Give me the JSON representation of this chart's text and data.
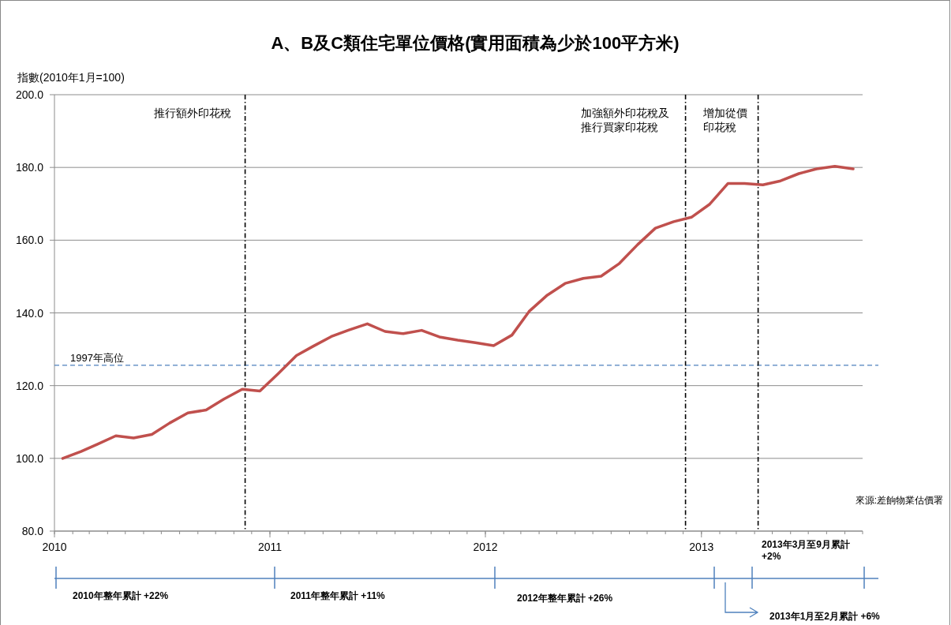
{
  "chart_data": {
    "type": "line",
    "title": "A、B及C類住宅單位價格(實用面積為少於100平方米)",
    "ylabel": "指數(2010年1月=100)",
    "x": [
      "2010-01-15",
      "2010-02-15",
      "2010-03-15",
      "2010-04-15",
      "2010-05-15",
      "2010-06-15",
      "2010-07-15",
      "2010-08-15",
      "2010-09-15",
      "2010-10-15",
      "2010-11-15",
      "2010-12-15",
      "2011-01-15",
      "2011-02-15",
      "2011-03-15",
      "2011-04-15",
      "2011-05-15",
      "2011-06-15",
      "2011-07-15",
      "2011-08-15",
      "2011-09-15",
      "2011-10-15",
      "2011-11-15",
      "2011-12-15",
      "2012-01-15",
      "2012-02-15",
      "2012-03-15",
      "2012-04-15",
      "2012-05-15",
      "2012-06-15",
      "2012-07-15",
      "2012-08-15",
      "2012-09-15",
      "2012-10-15",
      "2012-11-15",
      "2012-12-15",
      "2013-01-15",
      "2013-02-15",
      "2013-03-15",
      "2013-04-15",
      "2013-05-15",
      "2013-06-15",
      "2013-07-15",
      "2013-08-15",
      "2013-09-15"
    ],
    "series": [
      {
        "color": "#c0504d",
        "values": [
          100.0,
          101.9,
          103.9,
          106.2,
          105.6,
          106.6,
          109.7,
          112.5,
          113.3,
          116.3,
          119.0,
          118.5,
          123.3,
          128.3,
          130.8,
          133.5,
          135.3,
          137.0,
          134.9,
          134.3,
          135.2,
          133.4,
          132.5,
          131.8,
          131.0,
          133.9,
          140.4,
          144.9,
          148.1,
          149.5,
          150.1,
          153.6,
          158.8,
          163.3,
          165.1,
          166.3,
          169.9,
          175.6,
          175.6,
          175.2,
          176.3,
          178.3,
          179.6,
          180.3,
          179.6
        ]
      }
    ],
    "xlim": [
      "2010-01-01",
      "2013-10-01"
    ],
    "xticks": [
      {
        "value": "2010-01-01",
        "label": "2010"
      },
      {
        "value": "2011-01-01",
        "label": "2011"
      },
      {
        "value": "2012-01-01",
        "label": "2012"
      },
      {
        "value": "2013-01-01",
        "label": "2013"
      }
    ],
    "ylim": [
      80,
      200
    ],
    "yticks": [
      {
        "value": 80,
        "label": "80.0"
      },
      {
        "value": 100,
        "label": "100.0"
      },
      {
        "value": 120,
        "label": "120.0"
      },
      {
        "value": 140,
        "label": "140.0"
      },
      {
        "value": 160,
        "label": "160.0"
      },
      {
        "value": 180,
        "label": "180.0"
      },
      {
        "value": 200,
        "label": "200.0"
      }
    ],
    "grid": "y",
    "marker": "none",
    "line_style": "solid",
    "ref_lines": [
      {
        "axis": "y",
        "value": 125.6,
        "label": "1997年高位",
        "color": "#4f81bd",
        "line_style": "dashed"
      },
      {
        "axis": "x",
        "value": "2010-11-20",
        "label": "推行額外印花稅",
        "color": "#000000",
        "line_style": "dashdot"
      },
      {
        "axis": "x",
        "value": "2012-12-05",
        "label": "加強額外印花稅及推行買家印花稅",
        "color": "#000000",
        "line_style": "dashdot"
      },
      {
        "axis": "x",
        "value": "2013-04-07",
        "label": "增加從價印花稅",
        "color": "#000000",
        "line_style": "dashdot"
      }
    ],
    "annotations": [
      "來源:差餉物業估價署",
      "2010年整年累計 +22%",
      "2011年整年累計 +11%",
      "2012年整年累計 +26%",
      "2013年1月至2月累計 +6%",
      "2013年3月至9月累計 +2%"
    ]
  }
}
